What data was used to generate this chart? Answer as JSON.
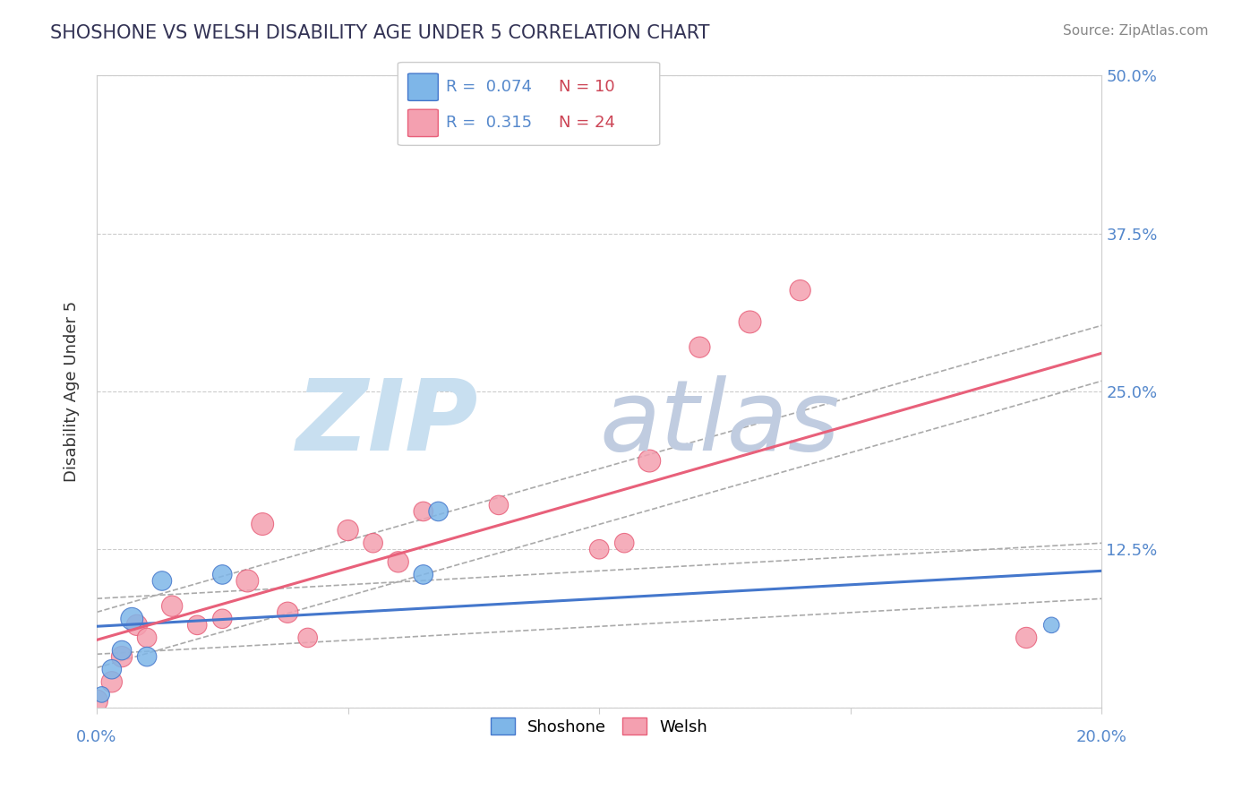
{
  "title": "SHOSHONE VS WELSH DISABILITY AGE UNDER 5 CORRELATION CHART",
  "source": "Source: ZipAtlas.com",
  "ylabel": "Disability Age Under 5",
  "legend_shoshone": "Shoshone",
  "legend_welsh": "Welsh",
  "r_shoshone": "0.074",
  "n_shoshone": "10",
  "r_welsh": "0.315",
  "n_welsh": "24",
  "xlim": [
    0.0,
    0.2
  ],
  "ylim": [
    0.0,
    0.5
  ],
  "yticks": [
    0.0,
    0.125,
    0.25,
    0.375,
    0.5
  ],
  "ytick_labels": [
    "",
    "12.5%",
    "25.0%",
    "37.5%",
    "50.0%"
  ],
  "color_shoshone": "#7eb6e8",
  "color_welsh": "#f4a0b0",
  "trendline_shoshone": "#4477cc",
  "trendline_welsh": "#e8607a",
  "watermark_zip_color": "#c8dff0",
  "watermark_atlas_color": "#c0cce0",
  "shoshone_x": [
    0.001,
    0.003,
    0.005,
    0.007,
    0.01,
    0.013,
    0.025,
    0.065,
    0.068,
    0.19
  ],
  "shoshone_y": [
    0.01,
    0.03,
    0.045,
    0.07,
    0.04,
    0.1,
    0.105,
    0.105,
    0.155,
    0.065
  ],
  "shoshone_size": [
    40,
    60,
    60,
    80,
    60,
    60,
    60,
    60,
    60,
    40
  ],
  "welsh_x": [
    0.0,
    0.003,
    0.005,
    0.008,
    0.01,
    0.015,
    0.02,
    0.025,
    0.03,
    0.033,
    0.038,
    0.042,
    0.05,
    0.055,
    0.06,
    0.065,
    0.08,
    0.1,
    0.105,
    0.11,
    0.12,
    0.13,
    0.14,
    0.185
  ],
  "welsh_y": [
    0.005,
    0.02,
    0.04,
    0.065,
    0.055,
    0.08,
    0.065,
    0.07,
    0.1,
    0.145,
    0.075,
    0.055,
    0.14,
    0.13,
    0.115,
    0.155,
    0.16,
    0.125,
    0.13,
    0.195,
    0.285,
    0.305,
    0.33,
    0.055
  ],
  "welsh_size": [
    80,
    70,
    70,
    70,
    60,
    70,
    60,
    60,
    80,
    80,
    70,
    60,
    70,
    60,
    70,
    60,
    60,
    60,
    60,
    80,
    70,
    80,
    70,
    70
  ]
}
